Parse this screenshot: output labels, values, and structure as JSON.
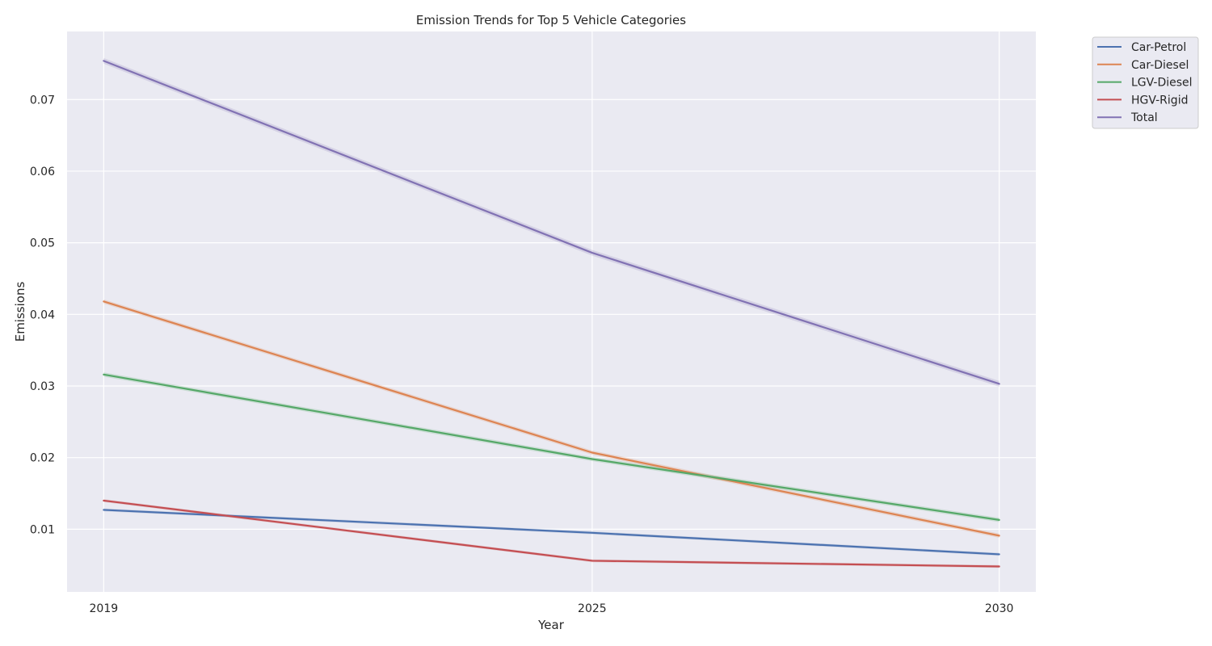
{
  "chart_data": {
    "type": "line",
    "title": "Emission Trends for Top 5 Vehicle Categories",
    "xlabel": "Year",
    "ylabel": "Emissions",
    "x": [
      2019,
      2025,
      2030
    ],
    "x_tick_labels": [
      "2019",
      "2025",
      "2030"
    ],
    "xlim": [
      2018.55,
      2030.45
    ],
    "ylim": [
      0.00125,
      0.0795
    ],
    "y_ticks": [
      0.01,
      0.02,
      0.03,
      0.04,
      0.05,
      0.06,
      0.07
    ],
    "y_tick_labels": [
      "0.01",
      "0.02",
      "0.03",
      "0.04",
      "0.05",
      "0.06",
      "0.07"
    ],
    "grid": true,
    "legend_position": "upper right, outside plot",
    "background_color": "#eaeaf2",
    "grid_color": "#ffffff",
    "series": [
      {
        "name": "Car-Petrol",
        "color": "#4c72b0",
        "values": [
          0.0127,
          0.0095,
          0.0065
        ],
        "band": 0.0002
      },
      {
        "name": "Car-Diesel",
        "color": "#dd8452",
        "values": [
          0.0418,
          0.0207,
          0.0091
        ],
        "band": 0.0003
      },
      {
        "name": "LGV-Diesel",
        "color": "#55a868",
        "values": [
          0.0316,
          0.0198,
          0.0113
        ],
        "band": 0.0003
      },
      {
        "name": "HGV-Rigid",
        "color": "#c44e52",
        "values": [
          0.014,
          0.0056,
          0.0048
        ],
        "band": 0.0002
      },
      {
        "name": "Total",
        "color": "#8172b3",
        "values": [
          0.0754,
          0.0486,
          0.0303
        ],
        "band": 0.0004
      }
    ]
  }
}
